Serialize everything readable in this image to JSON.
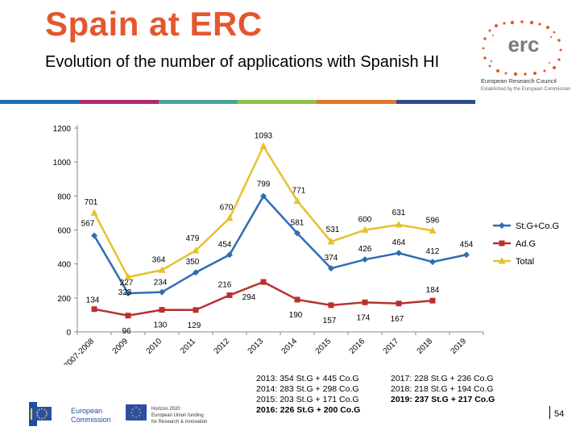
{
  "slide": {
    "title": "Spain at ERC",
    "subtitle": "Evolution of the number of applications with Spanish HI",
    "page_number": "54",
    "accent_color": "#e4572e",
    "color_bar": [
      "#1f6fb2",
      "#b3286e",
      "#4aa39a",
      "#8fbf4a",
      "#e0762d",
      "#2b4c8c"
    ]
  },
  "logo": {
    "word": "erc",
    "line1": "European Research Council",
    "line2": "Established by the European Commission"
  },
  "footer": {
    "commission_line1": "European",
    "commission_line2": "Commission",
    "horizon_line1": "Horizon 2020",
    "horizon_line2": "European Union funding",
    "horizon_line3": "for Research & Innovation"
  },
  "notes_left": [
    {
      "text": "2013: 354 St.G + 445 Co.G",
      "bold": false
    },
    {
      "text": "2014: 283 St.G + 298 Co.G",
      "bold": false
    },
    {
      "text": "2015: 203 St.G + 171 Co.G",
      "bold": false
    },
    {
      "text": "2016: 226 St.G + 200 Co.G",
      "bold": true
    }
  ],
  "notes_right": [
    {
      "text": "2017: 228 St.G + 236 Co.G",
      "bold": false
    },
    {
      "text": "2018: 218 St.G + 194 Co.G",
      "bold": false
    },
    {
      "text": "2019: 237 St.G + 217 Co.G",
      "bold": true
    }
  ],
  "chart_data": {
    "type": "line",
    "categories": [
      "2007-2008",
      "2009",
      "2010",
      "2011",
      "2012",
      "2013",
      "2014",
      "2015",
      "2016",
      "2017",
      "2018",
      "2019"
    ],
    "y_ticks": [
      "0",
      "200",
      "400",
      "600",
      "800",
      "1000",
      "1200"
    ],
    "ylim": [
      0,
      1200
    ],
    "legend_position": "right",
    "series": [
      {
        "name": "St.G+Co.G",
        "color": "#2e6db4",
        "marker": "diamond",
        "values": [
          567,
          227,
          234,
          350,
          454,
          799,
          581,
          374,
          426,
          464,
          412,
          454
        ],
        "labels": [
          "567",
          "227",
          "234",
          "350",
          "454",
          "799",
          "581",
          "374",
          "426",
          "464",
          "412",
          "454"
        ]
      },
      {
        "name": "Ad.G",
        "color": "#b8312f",
        "marker": "square",
        "values": [
          134,
          96,
          130,
          129,
          216,
          294,
          190,
          157,
          174,
          167,
          184,
          null
        ],
        "labels": [
          "134",
          "96",
          "130",
          "129",
          "216",
          "294",
          "190",
          "157",
          "174",
          "167",
          "184",
          ""
        ]
      },
      {
        "name": "Total",
        "color": "#e6c12f",
        "marker": "triangle",
        "values": [
          701,
          323,
          364,
          479,
          670,
          1093,
          771,
          531,
          600,
          631,
          596,
          null
        ],
        "labels": [
          "701",
          "323",
          "364",
          "479",
          "670",
          "1093",
          "771",
          "531",
          "600",
          "631",
          "596",
          ""
        ]
      }
    ]
  }
}
